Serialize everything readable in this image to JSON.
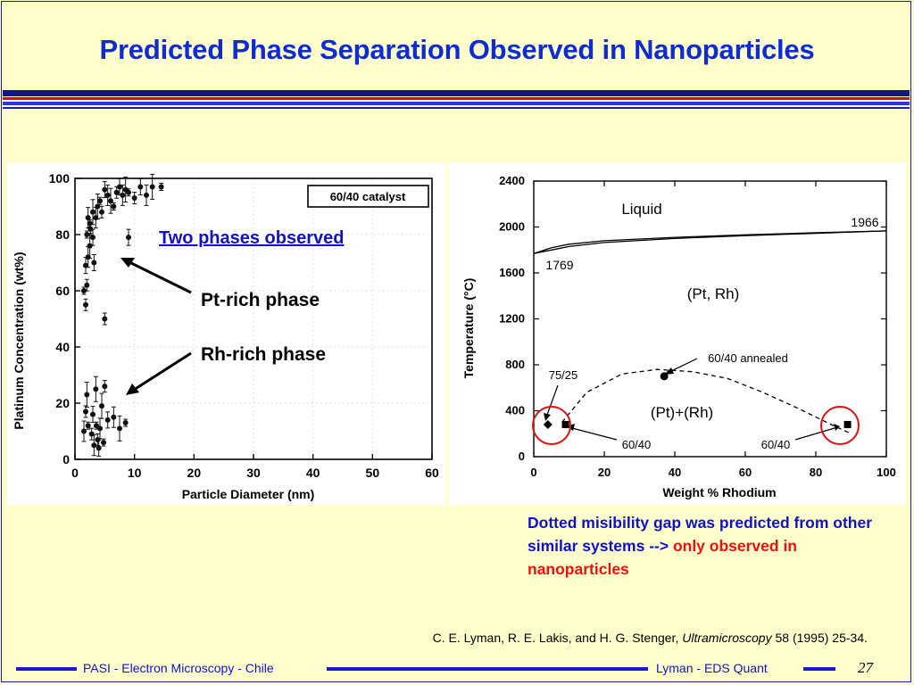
{
  "slide": {
    "title": "Predicted Phase Separation Observed in Nanoparticles",
    "annotations": {
      "two_phases": "Two phases observed",
      "pt_rich": "Pt-rich phase",
      "rh_rich": "Rh-rich phase"
    },
    "note": {
      "part1": "Dotted misibility gap was predicted from other similar systems --> ",
      "part2": "only observed in nanoparticles"
    },
    "citation": {
      "authors": "C. E. Lyman, R. E. Lakis, and H. G. Stenger, ",
      "journal": "Ultramicroscopy",
      "details": " 58 (1995) 25-34."
    },
    "footer": {
      "left": "PASI - Electron Microscopy - Chile",
      "right": "Lyman - EDS Quant",
      "page": "27"
    },
    "colors": {
      "title": "#0f2cd2",
      "accent_red": "#ee1111",
      "background": "#ffffcc"
    }
  },
  "chart_data": [
    {
      "type": "scatter",
      "title": "",
      "legend_box": "60/40 catalyst",
      "xlabel": "Particle  Diameter  (nm)",
      "ylabel": "Platinum  Concentration  (wt%)",
      "xlim": [
        0,
        60
      ],
      "ylim": [
        0,
        100
      ],
      "xticks": [
        0,
        10,
        20,
        30,
        40,
        50,
        60
      ],
      "yticks": [
        0,
        20,
        40,
        60,
        80,
        100
      ],
      "points": [
        {
          "x": 1.5,
          "y": 60
        },
        {
          "x": 2,
          "y": 62
        },
        {
          "x": 1.8,
          "y": 69
        },
        {
          "x": 2.2,
          "y": 72
        },
        {
          "x": 2.5,
          "y": 76
        },
        {
          "x": 2,
          "y": 80
        },
        {
          "x": 2.6,
          "y": 82
        },
        {
          "x": 3,
          "y": 79
        },
        {
          "x": 2.2,
          "y": 86
        },
        {
          "x": 3,
          "y": 88
        },
        {
          "x": 2.5,
          "y": 84
        },
        {
          "x": 1.8,
          "y": 55
        },
        {
          "x": 3.2,
          "y": 70
        },
        {
          "x": 3.5,
          "y": 86
        },
        {
          "x": 3.8,
          "y": 90
        },
        {
          "x": 4.2,
          "y": 92
        },
        {
          "x": 4.5,
          "y": 88
        },
        {
          "x": 5,
          "y": 96
        },
        {
          "x": 5.5,
          "y": 94
        },
        {
          "x": 6,
          "y": 92
        },
        {
          "x": 6.5,
          "y": 90
        },
        {
          "x": 7,
          "y": 95
        },
        {
          "x": 7.5,
          "y": 97
        },
        {
          "x": 8,
          "y": 94
        },
        {
          "x": 8.5,
          "y": 96
        },
        {
          "x": 9,
          "y": 95
        },
        {
          "x": 10,
          "y": 93
        },
        {
          "x": 11,
          "y": 97
        },
        {
          "x": 12,
          "y": 94
        },
        {
          "x": 13,
          "y": 97
        },
        {
          "x": 14.5,
          "y": 97
        },
        {
          "x": 5,
          "y": 50
        },
        {
          "x": 9,
          "y": 79
        },
        {
          "x": 1.5,
          "y": 10
        },
        {
          "x": 2,
          "y": 23
        },
        {
          "x": 2.2,
          "y": 12
        },
        {
          "x": 2.8,
          "y": 9
        },
        {
          "x": 3,
          "y": 16
        },
        {
          "x": 3.2,
          "y": 5
        },
        {
          "x": 3.5,
          "y": 25
        },
        {
          "x": 3.6,
          "y": 12
        },
        {
          "x": 3.8,
          "y": 7
        },
        {
          "x": 4,
          "y": 4
        },
        {
          "x": 4.2,
          "y": 11
        },
        {
          "x": 4.5,
          "y": 19
        },
        {
          "x": 4.8,
          "y": 6
        },
        {
          "x": 5,
          "y": 26
        },
        {
          "x": 5.5,
          "y": 14
        },
        {
          "x": 6.5,
          "y": 15
        },
        {
          "x": 7.5,
          "y": 11
        },
        {
          "x": 8.5,
          "y": 13
        },
        {
          "x": 1.8,
          "y": 17
        }
      ]
    },
    {
      "type": "line",
      "title": "",
      "xlabel": "Weight  %  Rhodium",
      "ylabel": "Temperature   (°C)",
      "xlim": [
        0,
        100
      ],
      "ylim": [
        0,
        2400
      ],
      "xticks": [
        0,
        20,
        40,
        60,
        80,
        100
      ],
      "yticks": [
        0,
        400,
        800,
        1200,
        1600,
        2000,
        2400
      ],
      "series": [
        {
          "x": [
            0,
            5,
            10,
            20,
            40,
            60,
            80,
            100
          ],
          "values": [
            1769,
            1800,
            1830,
            1865,
            1900,
            1925,
            1945,
            1966
          ]
        },
        {
          "x": [
            0,
            5,
            10,
            20,
            40,
            60,
            80,
            100
          ],
          "values": [
            1769,
            1820,
            1850,
            1880,
            1910,
            1932,
            1950,
            1966
          ]
        },
        {
          "x": [
            8,
            15,
            25,
            35,
            45,
            55,
            65,
            75,
            85,
            90
          ],
          "values": [
            300,
            560,
            720,
            760,
            740,
            680,
            560,
            420,
            270,
            200
          ]
        }
      ],
      "markers": [
        {
          "shape": "diamond",
          "x": 4,
          "y": 280
        },
        {
          "shape": "square",
          "x": 9,
          "y": 280
        },
        {
          "shape": "circle",
          "x": 37,
          "y": 700
        },
        {
          "shape": "square",
          "x": 89,
          "y": 280
        }
      ],
      "labels": {
        "liquid": "Liquid",
        "t_rh": "1966",
        "t_pt": "1769",
        "solid": "(Pt, Rh)",
        "two_phase": "(Pt)+(Rh)",
        "annealed": "60/40  annealed",
        "p7525": "75/25",
        "p6040a": "60/40",
        "p6040b": "60/40"
      }
    }
  ]
}
